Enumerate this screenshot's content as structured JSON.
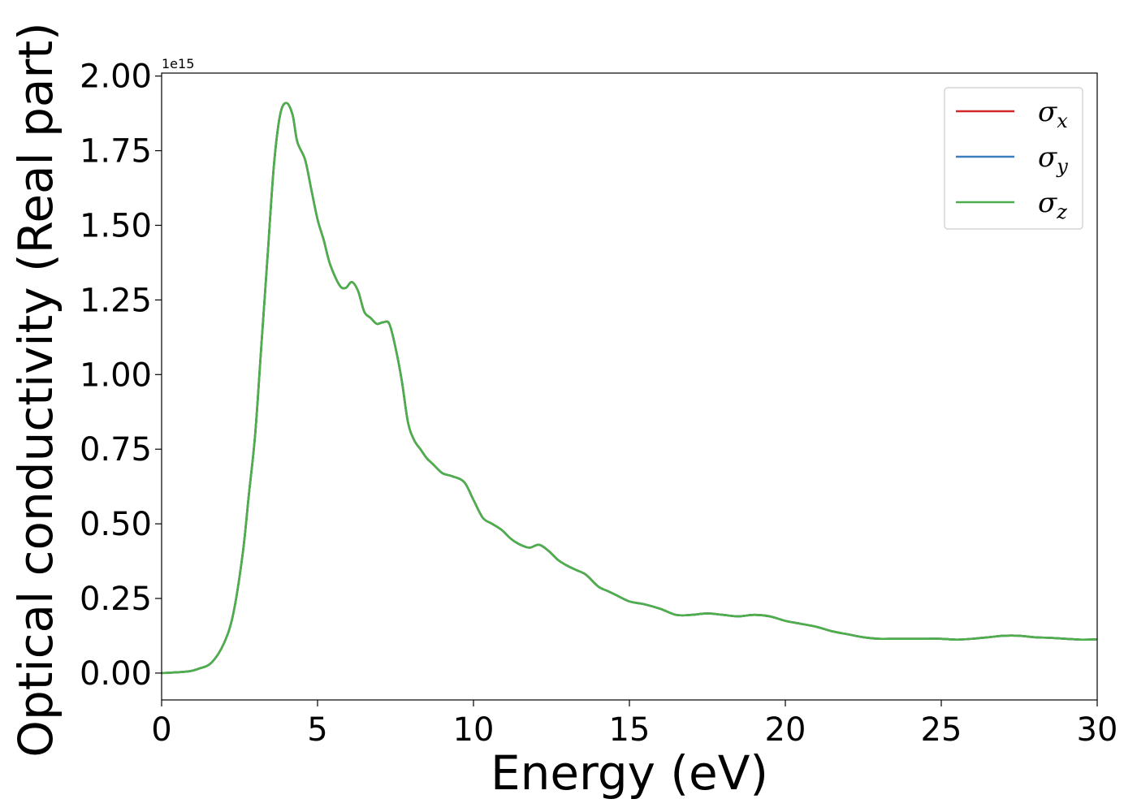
{
  "chart_data": {
    "type": "line",
    "title": "",
    "xlabel": "Energy (eV)",
    "ylabel": "Optical conductivity (Real part)",
    "y_offset_text": "1e15",
    "xlim": [
      0,
      30
    ],
    "ylim": [
      -0.09,
      2.01
    ],
    "xticks": [
      0,
      5,
      10,
      15,
      20,
      25,
      30
    ],
    "xtick_labels": [
      "0",
      "5",
      "10",
      "15",
      "20",
      "25",
      "30"
    ],
    "yticks": [
      0,
      0.25,
      0.5,
      0.75,
      1.0,
      1.25,
      1.5,
      1.75,
      2.0
    ],
    "ytick_labels": [
      "0.00",
      "0.25",
      "0.50",
      "0.75",
      "1.00",
      "1.25",
      "1.50",
      "1.75",
      "2.00"
    ],
    "grid": false,
    "legend_position": "top-right",
    "series": [
      {
        "name": "σx",
        "symbol": "σ",
        "subscript": "x",
        "color": "#d62728"
      },
      {
        "name": "σy",
        "symbol": "σ",
        "subscript": "y",
        "color": "#3a7ebf"
      },
      {
        "name": "σz",
        "symbol": "σ",
        "subscript": "z",
        "color": "#4daf4a"
      }
    ],
    "x": [
      0,
      0.8,
      1.2,
      1.6,
      2.0,
      2.3,
      2.6,
      2.8,
      3.0,
      3.2,
      3.4,
      3.6,
      3.8,
      4.0,
      4.2,
      4.35,
      4.6,
      4.8,
      5.0,
      5.2,
      5.4,
      5.7,
      5.9,
      6.1,
      6.3,
      6.5,
      6.7,
      6.9,
      7.1,
      7.3,
      7.5,
      7.7,
      7.9,
      8.1,
      8.3,
      8.5,
      8.7,
      9.0,
      9.3,
      9.7,
      10.0,
      10.3,
      10.6,
      10.9,
      11.2,
      11.5,
      11.8,
      12.1,
      12.4,
      12.7,
      13.0,
      13.3,
      13.6,
      14.0,
      14.3,
      14.6,
      15.0,
      15.5,
      16.0,
      16.5,
      17.0,
      17.5,
      18.0,
      18.5,
      19.0,
      19.5,
      20.0,
      20.5,
      21.0,
      21.5,
      22.0,
      22.5,
      23.0,
      23.5,
      24.0,
      24.5,
      25.0,
      25.5,
      26.0,
      26.5,
      27.0,
      27.5,
      28.0,
      28.5,
      29.0,
      29.5,
      30.0
    ],
    "values": [
      0.0,
      0.005,
      0.015,
      0.035,
      0.1,
      0.2,
      0.4,
      0.6,
      0.8,
      1.1,
      1.4,
      1.7,
      1.87,
      1.91,
      1.87,
      1.78,
      1.72,
      1.62,
      1.52,
      1.45,
      1.37,
      1.3,
      1.29,
      1.31,
      1.28,
      1.21,
      1.19,
      1.17,
      1.175,
      1.17,
      1.09,
      0.98,
      0.84,
      0.78,
      0.75,
      0.72,
      0.7,
      0.67,
      0.66,
      0.64,
      0.58,
      0.52,
      0.5,
      0.48,
      0.45,
      0.43,
      0.42,
      0.43,
      0.41,
      0.38,
      0.36,
      0.345,
      0.33,
      0.29,
      0.275,
      0.26,
      0.24,
      0.23,
      0.215,
      0.195,
      0.195,
      0.2,
      0.195,
      0.19,
      0.195,
      0.19,
      0.175,
      0.165,
      0.155,
      0.14,
      0.13,
      0.12,
      0.115,
      0.115,
      0.115,
      0.115,
      0.115,
      0.112,
      0.115,
      0.12,
      0.125,
      0.125,
      0.12,
      0.118,
      0.115,
      0.112,
      0.113
    ]
  }
}
